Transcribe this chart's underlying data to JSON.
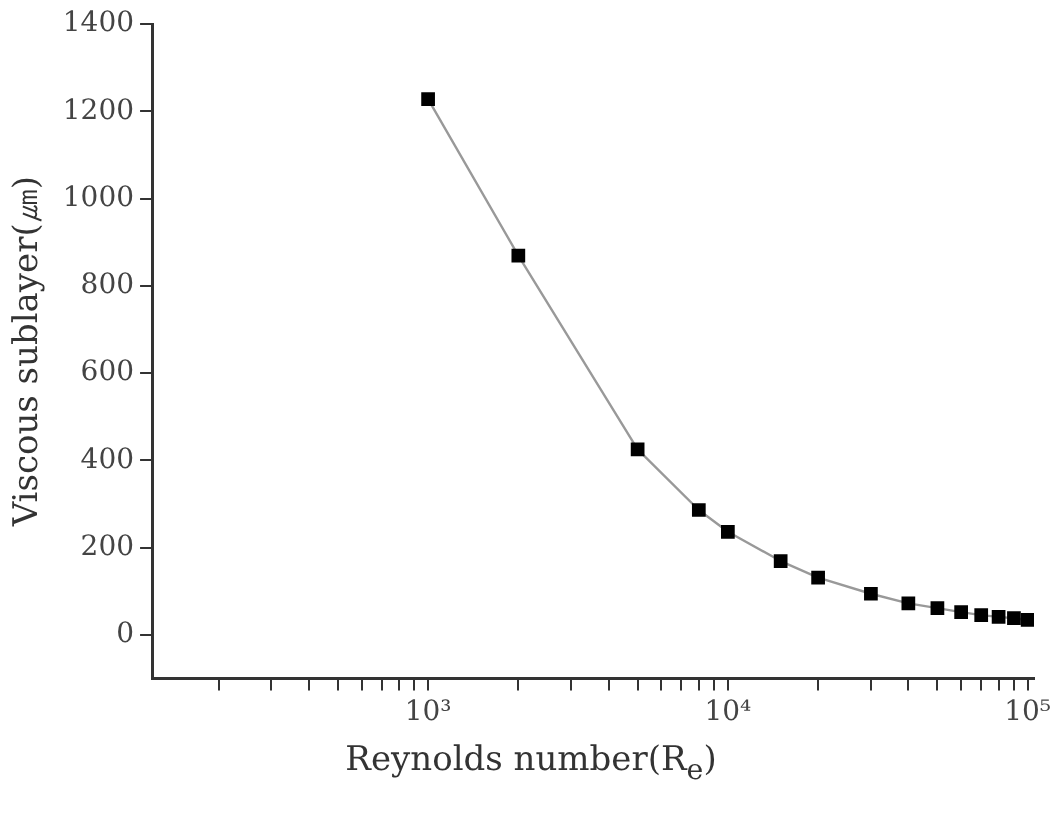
{
  "chart_data": {
    "type": "line",
    "xlabel": "Reynolds number(R$_{e}$)",
    "ylabel": "Viscous sublayer(㎛)",
    "log": "x",
    "x": [
      1000,
      2000,
      5000,
      8000,
      10000,
      15000,
      20000,
      30000,
      40000,
      50000,
      60000,
      70000,
      80000,
      90000,
      100000
    ],
    "series": [
      {
        "color": "#000000",
        "values": [
          1228,
          869,
          425,
          286,
          236,
          169,
          131,
          94,
          72,
          61,
          52,
          45,
          41,
          38,
          34
        ]
      }
    ],
    "xlim": [
      120,
      105000
    ],
    "xticks": [
      {
        "value": 200,
        "label": null
      },
      {
        "value": 300,
        "label": null
      },
      {
        "value": 400,
        "label": null
      },
      {
        "value": 500,
        "label": null
      },
      {
        "value": 600,
        "label": null
      },
      {
        "value": 700,
        "label": null
      },
      {
        "value": 800,
        "label": null
      },
      {
        "value": 900,
        "label": null
      },
      {
        "value": 1000,
        "label": "10³"
      },
      {
        "value": 2000,
        "label": null
      },
      {
        "value": 3000,
        "label": null
      },
      {
        "value": 4000,
        "label": null
      },
      {
        "value": 5000,
        "label": null
      },
      {
        "value": 6000,
        "label": null
      },
      {
        "value": 7000,
        "label": null
      },
      {
        "value": 8000,
        "label": null
      },
      {
        "value": 9000,
        "label": null
      },
      {
        "value": 10000,
        "label": "10⁴"
      },
      {
        "value": 20000,
        "label": null
      },
      {
        "value": 30000,
        "label": null
      },
      {
        "value": 40000,
        "label": null
      },
      {
        "value": 50000,
        "label": null
      },
      {
        "value": 60000,
        "label": null
      },
      {
        "value": 70000,
        "label": null
      },
      {
        "value": 80000,
        "label": null
      },
      {
        "value": 90000,
        "label": null
      },
      {
        "value": 100000,
        "label": "10⁵"
      }
    ],
    "ylim": [
      -100,
      1400
    ],
    "yticks": [
      0,
      200,
      400,
      600,
      800,
      1000,
      1200,
      1400
    ],
    "grid": false,
    "legend": false,
    "marker": "square",
    "line_style": "solid"
  }
}
